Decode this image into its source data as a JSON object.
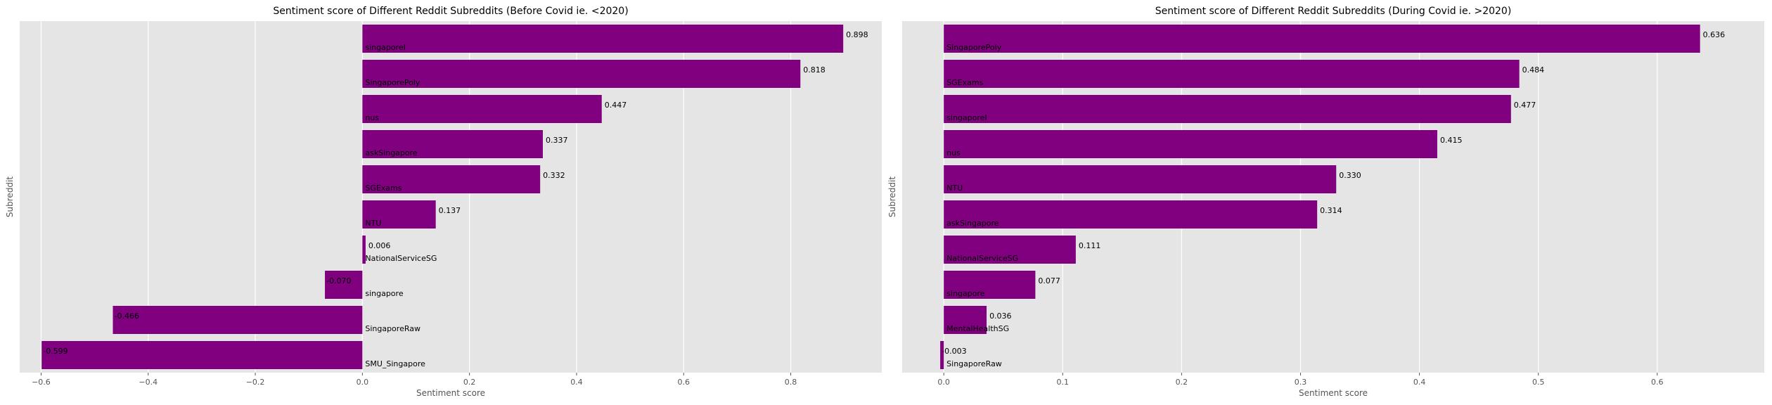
{
  "chart_data": [
    {
      "type": "bar",
      "orientation": "horizontal",
      "title": "Sentiment score of Different Reddit Subreddits (Before Covid ie. <2020)",
      "xlabel": "Sentiment score",
      "ylabel": "Subreddit",
      "xlim": [
        -0.64,
        0.97
      ],
      "xticks": [
        -0.6,
        -0.4,
        -0.2,
        0.0,
        0.2,
        0.4,
        0.6,
        0.8
      ],
      "xtick_labels": [
        "−0.6",
        "−0.4",
        "−0.2",
        "0.0",
        "0.2",
        "0.4",
        "0.6",
        "0.8"
      ],
      "grid": true,
      "bar_color": "#800080",
      "background_color": "#e5e5e5",
      "categories": [
        "singaporeI",
        "SingaporePoly",
        "nus",
        "askSingapore",
        "SGExams",
        "NTU",
        "NationalServiceSG",
        "singapore",
        "SingaporeRaw",
        "SMU_Singapore"
      ],
      "values": [
        0.898,
        0.818,
        0.447,
        0.337,
        0.332,
        0.137,
        0.006,
        -0.07,
        -0.466,
        -0.599
      ],
      "value_labels": [
        "0.898",
        "0.818",
        "0.447",
        "0.337",
        "0.332",
        "0.137",
        "0.006",
        "-0.070",
        "-0.466",
        "-0.599"
      ]
    },
    {
      "type": "bar",
      "orientation": "horizontal",
      "title": "Sentiment score of Different Reddit Subreddits (During Covid ie. >2020)",
      "xlabel": "Sentiment score",
      "ylabel": "Subreddit",
      "xlim": [
        -0.035,
        0.69
      ],
      "xticks": [
        0.0,
        0.1,
        0.2,
        0.3,
        0.4,
        0.5,
        0.6
      ],
      "xtick_labels": [
        "0.0",
        "0.1",
        "0.2",
        "0.3",
        "0.4",
        "0.5",
        "0.6"
      ],
      "grid": true,
      "bar_color": "#800080",
      "background_color": "#e5e5e5",
      "categories": [
        "SingaporePoly",
        "SGExams",
        "singaporeI",
        "nus",
        "NTU",
        "askSingapore",
        "NationalServiceSG",
        "singapore",
        "MentalHealthSG",
        "SingaporeRaw"
      ],
      "values": [
        0.636,
        0.484,
        0.477,
        0.415,
        0.33,
        0.314,
        0.111,
        0.077,
        0.036,
        -0.003
      ],
      "value_labels": [
        "0.636",
        "0.484",
        "0.477",
        "0.415",
        "0.330",
        "0.314",
        "0.111",
        "0.077",
        "0.036",
        "-0.003"
      ]
    }
  ]
}
